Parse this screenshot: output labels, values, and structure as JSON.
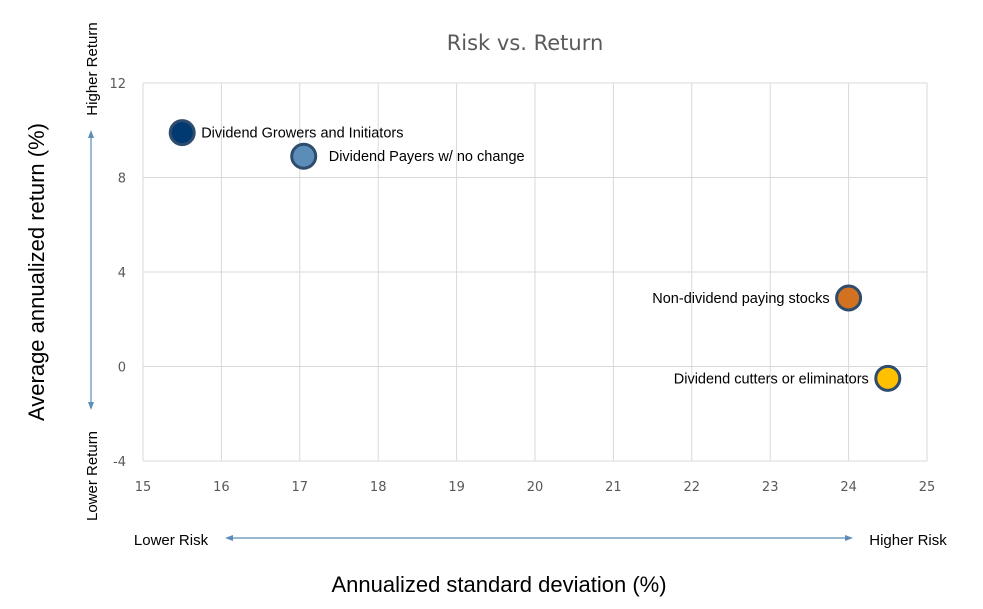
{
  "chart_data": {
    "type": "scatter",
    "title": "Risk vs. Return",
    "xlabel": "Annualized standard deviation (%)",
    "ylabel": "Average annualized return (%)",
    "xlim": [
      15,
      25
    ],
    "ylim": [
      -4,
      12
    ],
    "xticks": [
      "15",
      "16",
      "17",
      "18",
      "19",
      "20",
      "21",
      "22",
      "23",
      "24",
      "25"
    ],
    "yticks": [
      "-4",
      "0",
      "4",
      "8",
      "12"
    ],
    "grid": true,
    "points": [
      {
        "label": "Dividend Growers and Initiators",
        "x": 15.5,
        "y": 9.9,
        "color": "#003a70"
      },
      {
        "label": "Dividend Payers w/ no change",
        "x": 17.05,
        "y": 8.9,
        "color": "#5b8db8"
      },
      {
        "label": "Non-dividend paying stocks",
        "x": 24.0,
        "y": 2.9,
        "color": "#d2711f"
      },
      {
        "label": "Dividend cutters or eliminators",
        "x": 24.5,
        "y": -0.5,
        "color": "#ffc000"
      }
    ],
    "annotations": {
      "x_low": "Lower Risk",
      "x_high": "Higher Risk",
      "y_low": "Lower Return",
      "y_high": "Higher Return"
    },
    "marker_edge_color": "#2e4c6e",
    "arrow_color": "#5b8db8"
  }
}
